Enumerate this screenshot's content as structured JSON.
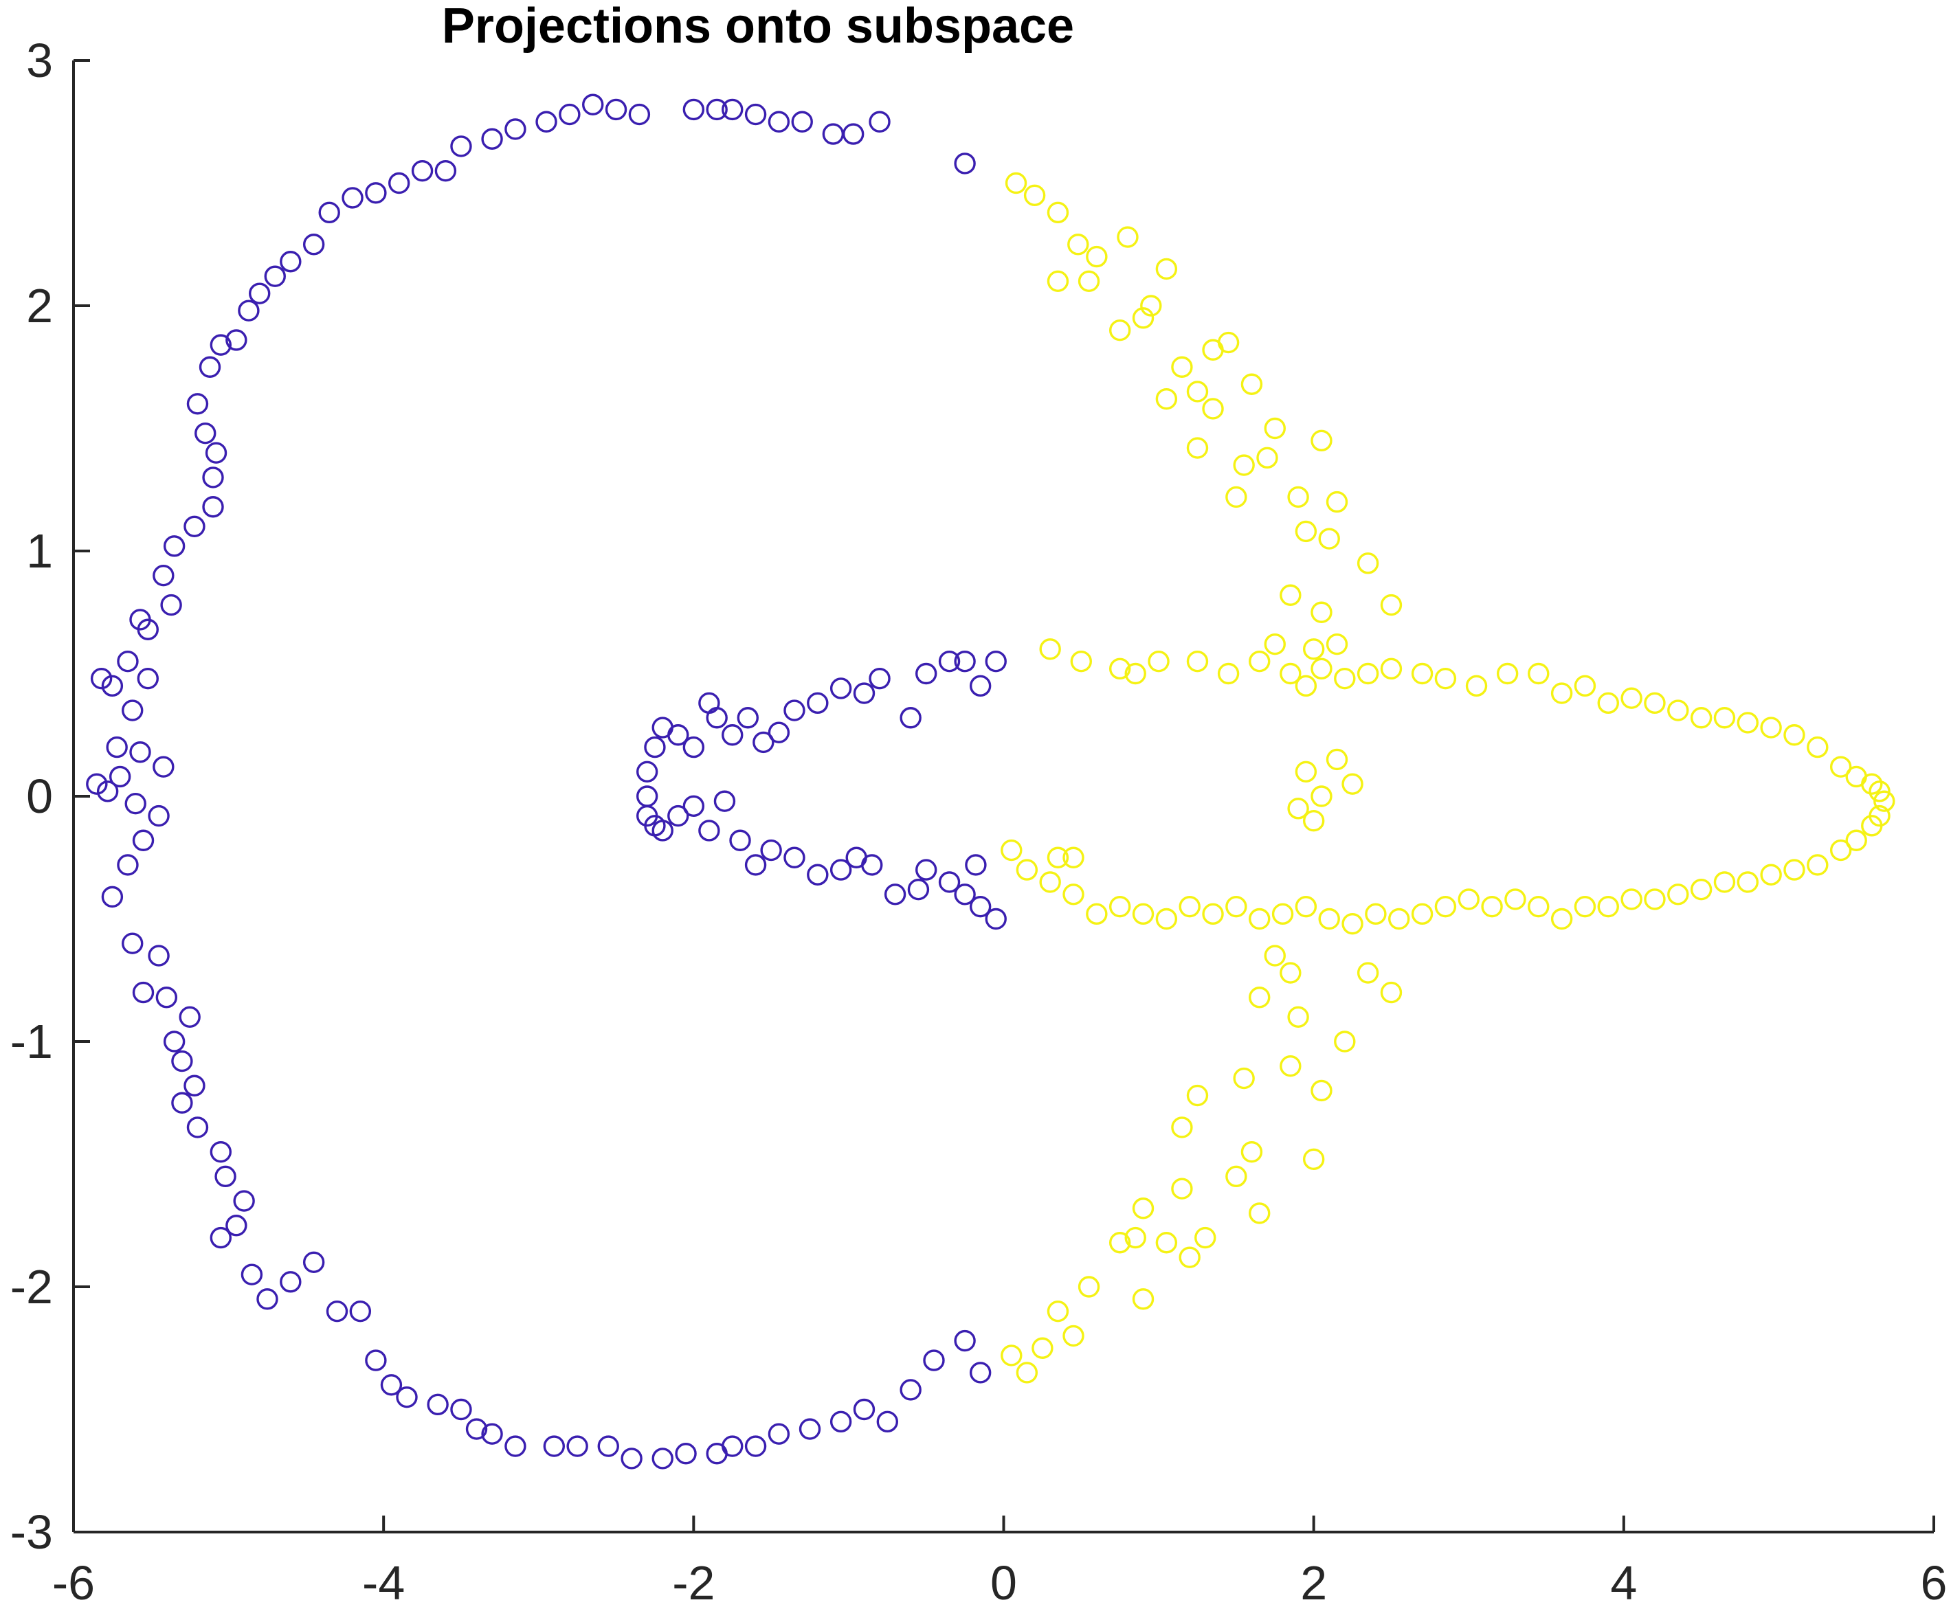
{
  "chart_data": {
    "type": "scatter",
    "title": "Projections onto subspace",
    "xlabel": "",
    "ylabel": "",
    "xlim": [
      -6,
      6
    ],
    "ylim": [
      -3,
      3
    ],
    "xticks": [
      "-6",
      "-4",
      "-2",
      "0",
      "2",
      "4",
      "6"
    ],
    "yticks": [
      "3",
      "2",
      "1",
      "0",
      "-1",
      "-2",
      "-3"
    ],
    "grid": false,
    "legend": "none",
    "marker": "open-circle",
    "colors": {
      "blue": "#3a1fb0",
      "yellow": "#f5f214"
    },
    "series": [
      {
        "color": "blue",
        "points": [
          [
            -0.25,
            2.58
          ],
          [
            -0.8,
            2.75
          ],
          [
            -0.97,
            2.7
          ],
          [
            -1.1,
            2.7
          ],
          [
            -1.3,
            2.75
          ],
          [
            -1.45,
            2.75
          ],
          [
            -1.6,
            2.78
          ],
          [
            -1.75,
            2.8
          ],
          [
            -1.85,
            2.8
          ],
          [
            -2.0,
            2.8
          ],
          [
            -2.35,
            2.78
          ],
          [
            -2.5,
            2.8
          ],
          [
            -2.65,
            2.82
          ],
          [
            -2.8,
            2.78
          ],
          [
            -2.95,
            2.75
          ],
          [
            -3.15,
            2.72
          ],
          [
            -3.3,
            2.68
          ],
          [
            -3.5,
            2.65
          ],
          [
            -3.6,
            2.55
          ],
          [
            -3.75,
            2.55
          ],
          [
            -3.9,
            2.5
          ],
          [
            -4.05,
            2.46
          ],
          [
            -4.2,
            2.44
          ],
          [
            -4.35,
            2.38
          ],
          [
            -4.45,
            2.25
          ],
          [
            -4.6,
            2.18
          ],
          [
            -4.7,
            2.12
          ],
          [
            -4.8,
            2.05
          ],
          [
            -4.87,
            1.98
          ],
          [
            -4.95,
            1.86
          ],
          [
            -5.05,
            1.84
          ],
          [
            -5.12,
            1.75
          ],
          [
            -5.2,
            1.6
          ],
          [
            -5.15,
            1.48
          ],
          [
            -5.08,
            1.4
          ],
          [
            -5.1,
            1.3
          ],
          [
            -5.1,
            1.18
          ],
          [
            -5.22,
            1.1
          ],
          [
            -5.35,
            1.02
          ],
          [
            -5.42,
            0.9
          ],
          [
            -5.37,
            0.78
          ],
          [
            -5.52,
            0.68
          ],
          [
            -5.57,
            0.72
          ],
          [
            -5.65,
            0.55
          ],
          [
            -5.52,
            0.48
          ],
          [
            -5.75,
            0.45
          ],
          [
            -5.82,
            0.48
          ],
          [
            -5.62,
            0.35
          ],
          [
            -5.72,
            0.2
          ],
          [
            -5.57,
            0.18
          ],
          [
            -5.42,
            0.12
          ],
          [
            -5.7,
            0.08
          ],
          [
            -5.78,
            0.02
          ],
          [
            -5.85,
            0.05
          ],
          [
            -5.6,
            -0.03
          ],
          [
            -5.45,
            -0.08
          ],
          [
            -5.55,
            -0.18
          ],
          [
            -5.65,
            -0.28
          ],
          [
            -5.75,
            -0.41
          ],
          [
            -5.62,
            -0.6
          ],
          [
            -5.45,
            -0.65
          ],
          [
            -5.55,
            -0.8
          ],
          [
            -5.4,
            -0.82
          ],
          [
            -5.25,
            -0.9
          ],
          [
            -5.35,
            -1.0
          ],
          [
            -5.3,
            -1.08
          ],
          [
            -5.22,
            -1.18
          ],
          [
            -5.3,
            -1.25
          ],
          [
            -5.2,
            -1.35
          ],
          [
            -5.05,
            -1.45
          ],
          [
            -5.02,
            -1.55
          ],
          [
            -4.9,
            -1.65
          ],
          [
            -4.95,
            -1.75
          ],
          [
            -5.05,
            -1.8
          ],
          [
            -4.85,
            -1.95
          ],
          [
            -4.75,
            -2.05
          ],
          [
            -4.6,
            -1.98
          ],
          [
            -4.45,
            -1.9
          ],
          [
            -4.3,
            -2.1
          ],
          [
            -4.15,
            -2.1
          ],
          [
            -4.05,
            -2.3
          ],
          [
            -3.95,
            -2.4
          ],
          [
            -3.85,
            -2.45
          ],
          [
            -3.65,
            -2.48
          ],
          [
            -3.5,
            -2.5
          ],
          [
            -3.4,
            -2.58
          ],
          [
            -3.3,
            -2.6
          ],
          [
            -3.15,
            -2.65
          ],
          [
            -2.9,
            -2.65
          ],
          [
            -2.75,
            -2.65
          ],
          [
            -2.55,
            -2.65
          ],
          [
            -2.4,
            -2.7
          ],
          [
            -2.2,
            -2.7
          ],
          [
            -2.05,
            -2.68
          ],
          [
            -1.85,
            -2.68
          ],
          [
            -1.75,
            -2.65
          ],
          [
            -1.6,
            -2.65
          ],
          [
            -1.45,
            -2.6
          ],
          [
            -1.25,
            -2.58
          ],
          [
            -1.05,
            -2.55
          ],
          [
            -0.9,
            -2.5
          ],
          [
            -0.75,
            -2.55
          ],
          [
            -0.6,
            -2.42
          ],
          [
            -0.45,
            -2.3
          ],
          [
            -0.25,
            -2.22
          ],
          [
            -0.15,
            -2.35
          ],
          [
            -0.05,
            0.55
          ],
          [
            -0.15,
            0.45
          ],
          [
            -0.25,
            0.55
          ],
          [
            -0.35,
            0.55
          ],
          [
            -0.5,
            0.5
          ],
          [
            -0.6,
            0.32
          ],
          [
            -0.8,
            0.48
          ],
          [
            -0.9,
            0.42
          ],
          [
            -1.05,
            0.44
          ],
          [
            -1.2,
            0.38
          ],
          [
            -1.35,
            0.35
          ],
          [
            -1.45,
            0.26
          ],
          [
            -1.55,
            0.22
          ],
          [
            -1.65,
            0.32
          ],
          [
            -1.75,
            0.25
          ],
          [
            -1.85,
            0.32
          ],
          [
            -1.9,
            0.38
          ],
          [
            -2.0,
            0.2
          ],
          [
            -2.1,
            0.25
          ],
          [
            -2.2,
            0.28
          ],
          [
            -2.25,
            0.2
          ],
          [
            -2.3,
            0.1
          ],
          [
            -2.3,
            0.0
          ],
          [
            -2.3,
            -0.08
          ],
          [
            -2.25,
            -0.12
          ],
          [
            -2.2,
            -0.14
          ],
          [
            -2.1,
            -0.08
          ],
          [
            -2.0,
            -0.04
          ],
          [
            -1.9,
            -0.14
          ],
          [
            -1.8,
            -0.02
          ],
          [
            -1.7,
            -0.18
          ],
          [
            -1.6,
            -0.28
          ],
          [
            -1.5,
            -0.22
          ],
          [
            -1.35,
            -0.25
          ],
          [
            -1.2,
            -0.32
          ],
          [
            -1.05,
            -0.3
          ],
          [
            -0.95,
            -0.25
          ],
          [
            -0.85,
            -0.28
          ],
          [
            -0.7,
            -0.4
          ],
          [
            -0.55,
            -0.38
          ],
          [
            -0.35,
            -0.35
          ],
          [
            -0.25,
            -0.4
          ],
          [
            -0.15,
            -0.45
          ],
          [
            -0.05,
            -0.5
          ],
          [
            -0.18,
            -0.28
          ],
          [
            -0.5,
            -0.3
          ]
        ]
      },
      {
        "color": "yellow",
        "points": [
          [
            0.08,
            2.5
          ],
          [
            0.2,
            2.45
          ],
          [
            0.35,
            2.38
          ],
          [
            0.48,
            2.25
          ],
          [
            0.6,
            2.2
          ],
          [
            0.8,
            2.28
          ],
          [
            0.55,
            2.1
          ],
          [
            0.35,
            2.1
          ],
          [
            1.05,
            2.15
          ],
          [
            0.95,
            2.0
          ],
          [
            0.9,
            1.95
          ],
          [
            0.75,
            1.9
          ],
          [
            1.35,
            1.82
          ],
          [
            1.45,
            1.85
          ],
          [
            1.15,
            1.75
          ],
          [
            1.25,
            1.65
          ],
          [
            1.6,
            1.68
          ],
          [
            1.05,
            1.62
          ],
          [
            1.35,
            1.58
          ],
          [
            1.75,
            1.5
          ],
          [
            1.25,
            1.42
          ],
          [
            2.05,
            1.45
          ],
          [
            1.7,
            1.38
          ],
          [
            1.55,
            1.35
          ],
          [
            1.5,
            1.22
          ],
          [
            1.9,
            1.22
          ],
          [
            2.15,
            1.2
          ],
          [
            1.95,
            1.08
          ],
          [
            2.1,
            1.05
          ],
          [
            2.35,
            0.95
          ],
          [
            1.85,
            0.82
          ],
          [
            2.05,
            0.75
          ],
          [
            2.5,
            0.78
          ],
          [
            1.75,
            0.62
          ],
          [
            2.0,
            0.6
          ],
          [
            2.15,
            0.62
          ],
          [
            0.3,
            0.6
          ],
          [
            0.5,
            0.55
          ],
          [
            0.75,
            0.52
          ],
          [
            0.85,
            0.5
          ],
          [
            1.0,
            0.55
          ],
          [
            1.25,
            0.55
          ],
          [
            1.45,
            0.5
          ],
          [
            1.65,
            0.55
          ],
          [
            1.85,
            0.5
          ],
          [
            1.95,
            0.45
          ],
          [
            2.05,
            0.52
          ],
          [
            2.2,
            0.48
          ],
          [
            2.35,
            0.5
          ],
          [
            2.5,
            0.52
          ],
          [
            2.7,
            0.5
          ],
          [
            2.85,
            0.48
          ],
          [
            3.05,
            0.45
          ],
          [
            3.25,
            0.5
          ],
          [
            3.45,
            0.5
          ],
          [
            3.6,
            0.42
          ],
          [
            3.75,
            0.45
          ],
          [
            3.9,
            0.38
          ],
          [
            4.05,
            0.4
          ],
          [
            4.2,
            0.38
          ],
          [
            4.35,
            0.35
          ],
          [
            4.5,
            0.32
          ],
          [
            4.65,
            0.32
          ],
          [
            4.8,
            0.3
          ],
          [
            4.95,
            0.28
          ],
          [
            5.1,
            0.25
          ],
          [
            5.25,
            0.2
          ],
          [
            5.4,
            0.12
          ],
          [
            5.5,
            0.08
          ],
          [
            5.6,
            0.05
          ],
          [
            5.65,
            0.02
          ],
          [
            5.68,
            -0.02
          ],
          [
            5.65,
            -0.08
          ],
          [
            5.6,
            -0.12
          ],
          [
            5.5,
            -0.18
          ],
          [
            5.4,
            -0.22
          ],
          [
            5.25,
            -0.28
          ],
          [
            5.1,
            -0.3
          ],
          [
            4.95,
            -0.32
          ],
          [
            4.8,
            -0.35
          ],
          [
            4.65,
            -0.35
          ],
          [
            4.5,
            -0.38
          ],
          [
            4.35,
            -0.4
          ],
          [
            4.2,
            -0.42
          ],
          [
            4.05,
            -0.42
          ],
          [
            3.9,
            -0.45
          ],
          [
            3.75,
            -0.45
          ],
          [
            3.6,
            -0.5
          ],
          [
            3.45,
            -0.45
          ],
          [
            3.3,
            -0.42
          ],
          [
            3.15,
            -0.45
          ],
          [
            3.0,
            -0.42
          ],
          [
            2.85,
            -0.45
          ],
          [
            2.7,
            -0.48
          ],
          [
            2.55,
            -0.5
          ],
          [
            2.4,
            -0.48
          ],
          [
            2.25,
            -0.52
          ],
          [
            2.1,
            -0.5
          ],
          [
            1.95,
            -0.45
          ],
          [
            1.8,
            -0.48
          ],
          [
            1.65,
            -0.5
          ],
          [
            1.5,
            -0.45
          ],
          [
            1.35,
            -0.48
          ],
          [
            1.2,
            -0.45
          ],
          [
            1.05,
            -0.5
          ],
          [
            0.9,
            -0.48
          ],
          [
            0.75,
            -0.45
          ],
          [
            0.6,
            -0.48
          ],
          [
            0.45,
            -0.4
          ],
          [
            0.3,
            -0.35
          ],
          [
            0.15,
            -0.3
          ],
          [
            0.05,
            -0.22
          ],
          [
            0.35,
            -0.25
          ],
          [
            0.45,
            -0.25
          ],
          [
            2.0,
            -0.1
          ],
          [
            2.05,
            0.0
          ],
          [
            1.9,
            -0.05
          ],
          [
            1.95,
            0.1
          ],
          [
            2.15,
            0.15
          ],
          [
            2.25,
            0.05
          ],
          [
            1.75,
            -0.65
          ],
          [
            1.85,
            -0.72
          ],
          [
            1.65,
            -0.82
          ],
          [
            1.9,
            -0.9
          ],
          [
            2.35,
            -0.72
          ],
          [
            2.5,
            -0.8
          ],
          [
            2.2,
            -1.0
          ],
          [
            1.85,
            -1.1
          ],
          [
            2.05,
            -1.2
          ],
          [
            1.55,
            -1.15
          ],
          [
            1.25,
            -1.22
          ],
          [
            1.15,
            -1.35
          ],
          [
            1.6,
            -1.45
          ],
          [
            1.5,
            -1.55
          ],
          [
            1.15,
            -1.6
          ],
          [
            0.9,
            -1.68
          ],
          [
            1.65,
            -1.7
          ],
          [
            0.75,
            -1.82
          ],
          [
            0.85,
            -1.8
          ],
          [
            1.05,
            -1.82
          ],
          [
            1.3,
            -1.8
          ],
          [
            1.2,
            -1.88
          ],
          [
            0.9,
            -2.05
          ],
          [
            0.55,
            -2.0
          ],
          [
            0.35,
            -2.1
          ],
          [
            0.45,
            -2.2
          ],
          [
            0.25,
            -2.25
          ],
          [
            0.15,
            -2.35
          ],
          [
            0.05,
            -2.28
          ],
          [
            2.0,
            -1.48
          ]
        ]
      }
    ]
  }
}
